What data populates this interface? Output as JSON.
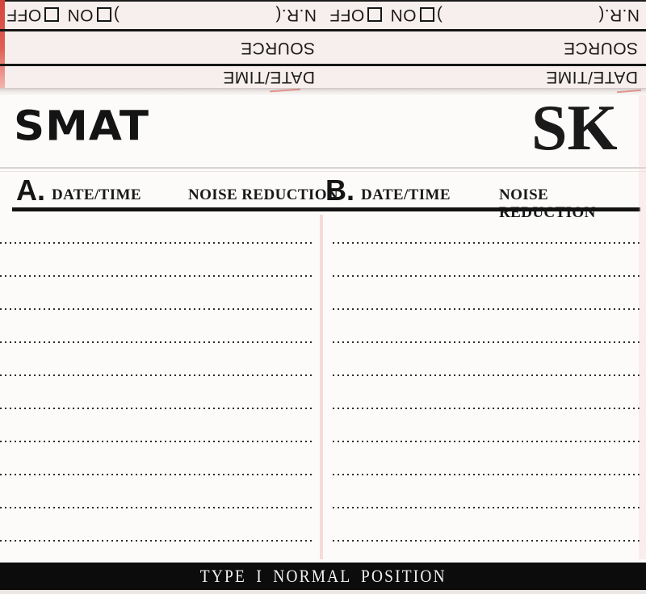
{
  "flap": {
    "nr_label": "N.R.(",
    "nr_close": ")",
    "on_label": "ON",
    "off_label": "OFF",
    "source_label": "SOURCE",
    "datetime_label": "DATE/TIME"
  },
  "card": {
    "brand": "SMAT",
    "model": "SK",
    "sections": [
      {
        "label": "A.",
        "datetime": "DATE/TIME",
        "noise": "NOISE REDUCTION"
      },
      {
        "label": "B.",
        "datetime": "DATE/TIME",
        "noise": "NOISE REDUCTION"
      }
    ],
    "writing_lines_per_side": 10,
    "footer": "TYPE I NORMAL POSITION"
  },
  "colors": {
    "flap_bg": "#f7efed",
    "card_bg": "#fcfbf9",
    "rule": "#161616",
    "red_edge": "#d8453d",
    "footer_bg": "#0d0c0c",
    "footer_text": "#f4f2f2",
    "dot": "#2b2b2b",
    "ink": "#171717"
  }
}
